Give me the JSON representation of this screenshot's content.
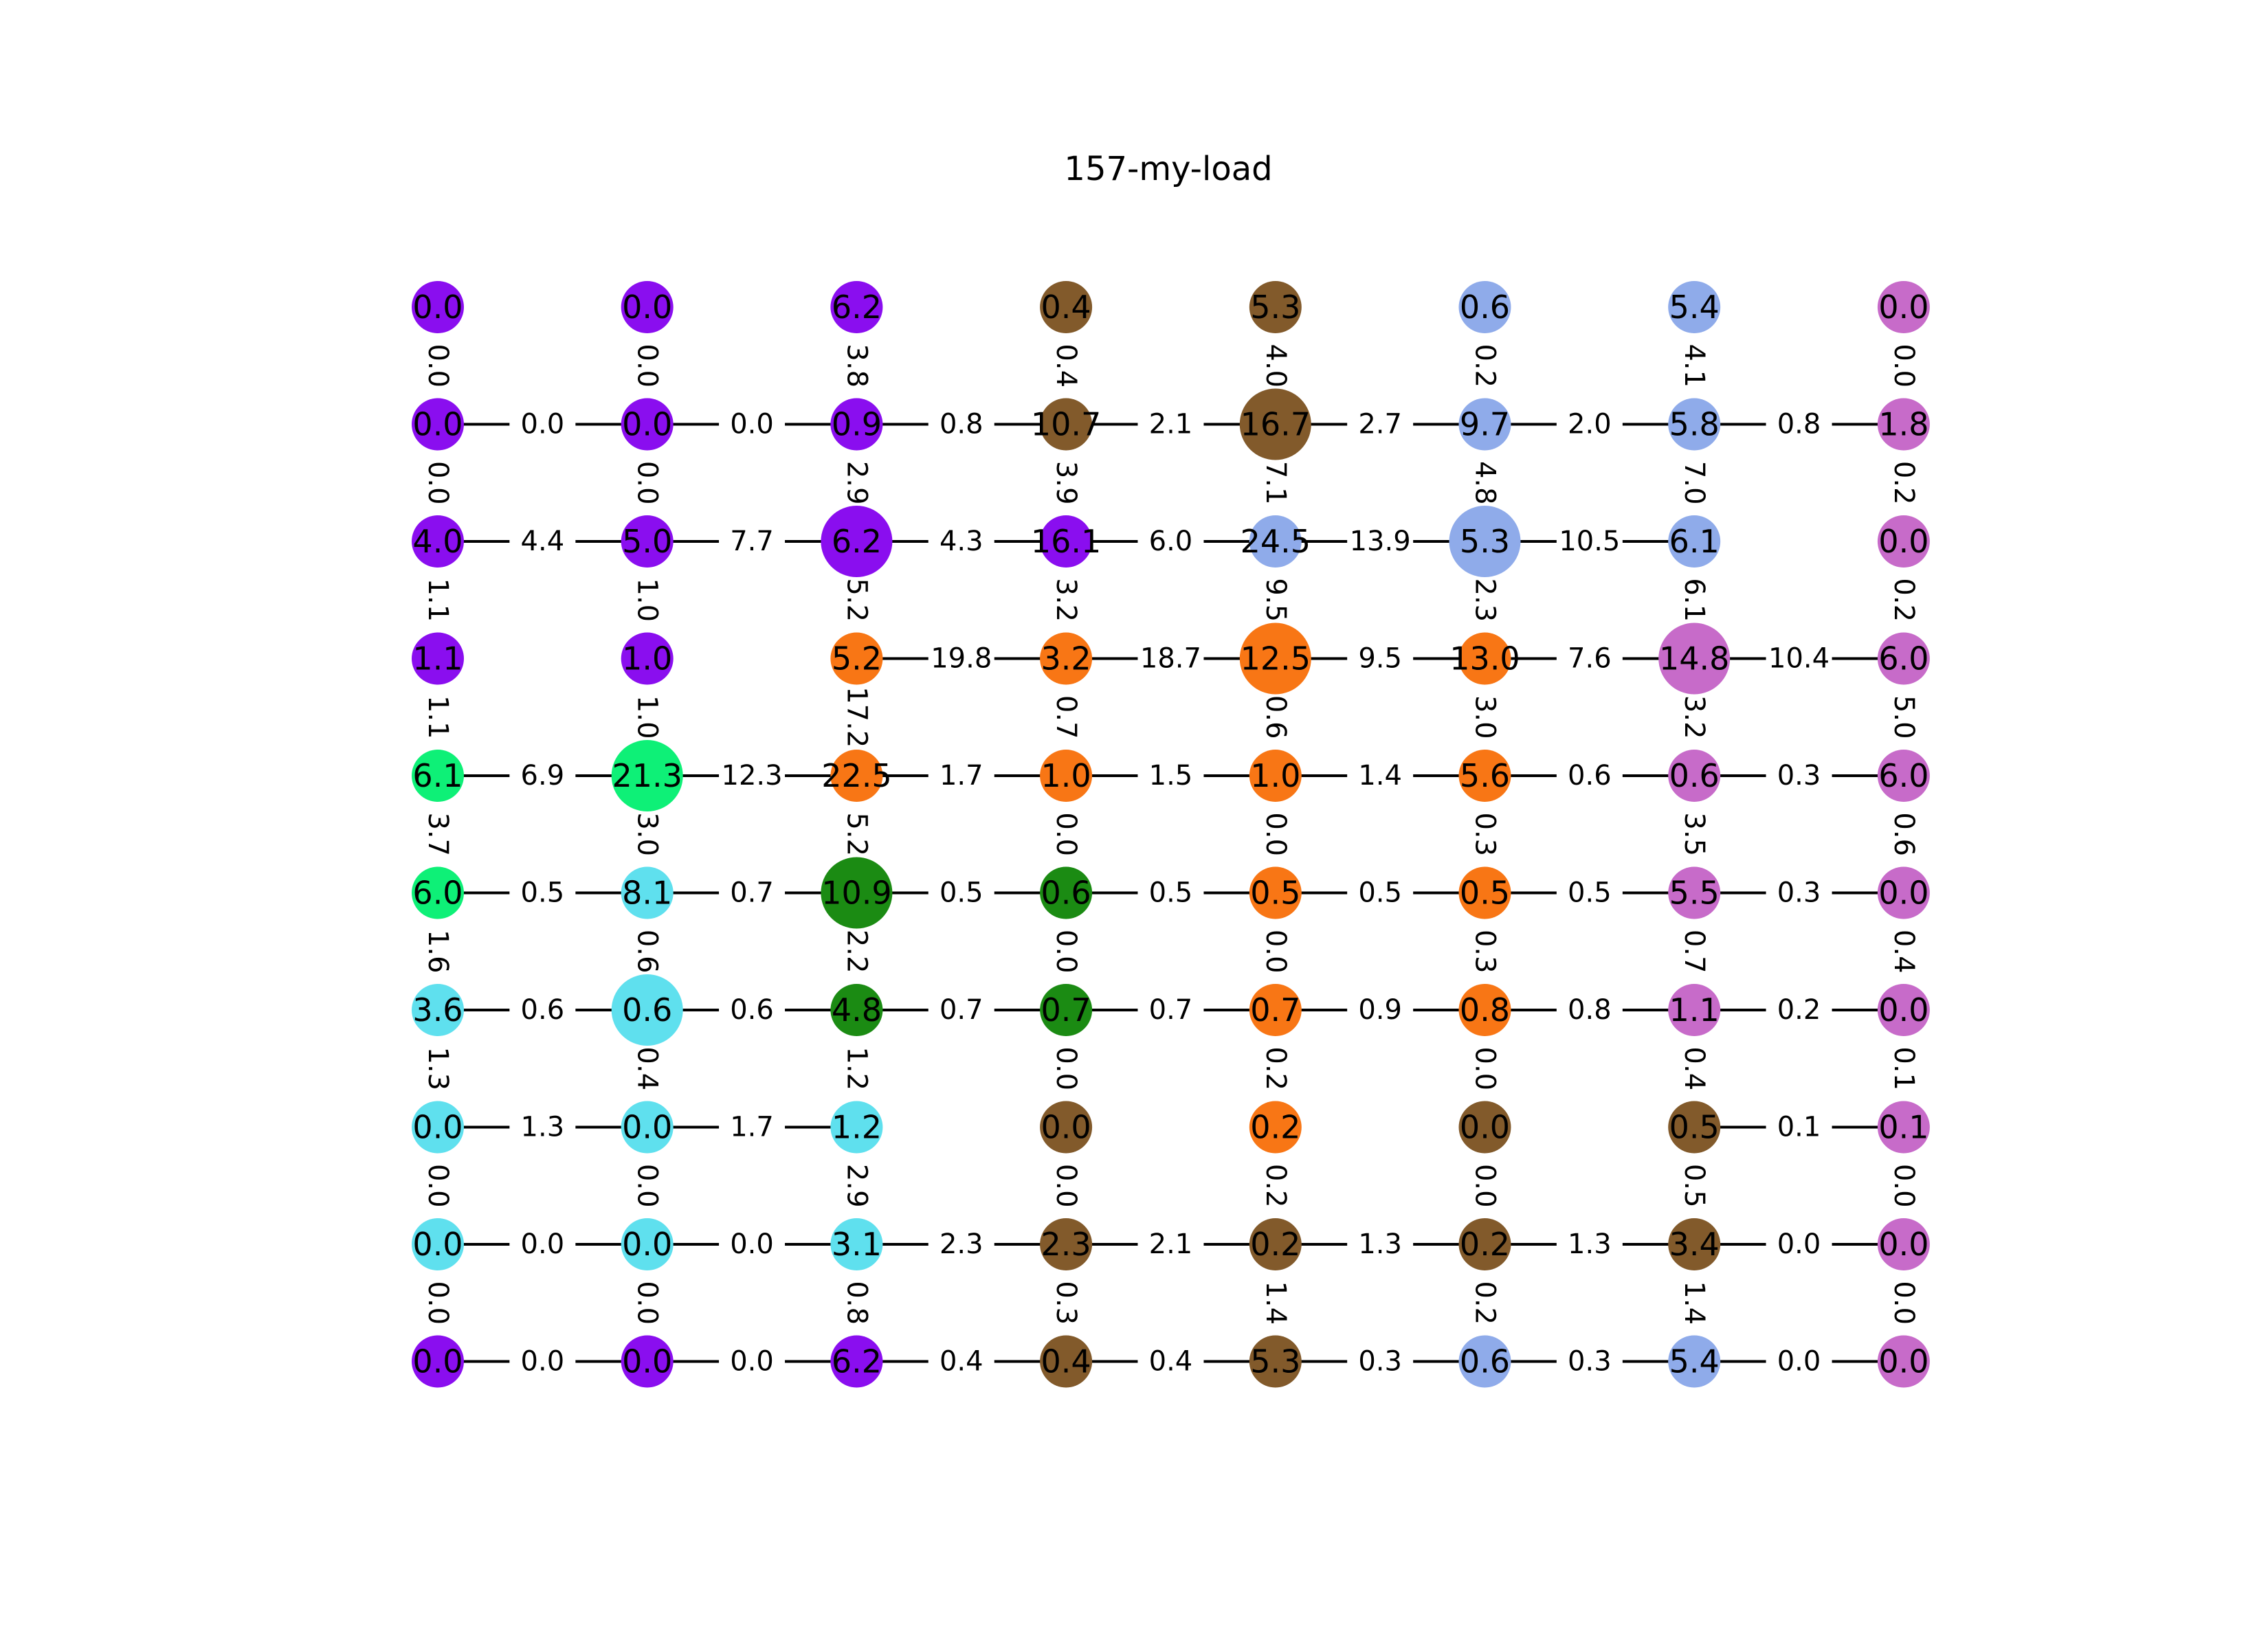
{
  "title": "157-my-load",
  "colors": {
    "purple": "#8a0eef",
    "brown": "#825a2b",
    "periwinkle": "#8fabea",
    "orchid": "#c76bc9",
    "green": "#0ef077",
    "cyan": "#5fe0ee",
    "orange": "#f87615",
    "forest": "#1b8b13"
  },
  "rows": [
    [
      {
        "v": "0.0",
        "c": "purple",
        "s": 0
      },
      {
        "v": "0.0",
        "c": "purple",
        "s": 0
      },
      {
        "v": "6.2",
        "c": "purple",
        "s": 0
      },
      {
        "v": "0.4",
        "c": "brown",
        "s": 0
      },
      {
        "v": "5.3",
        "c": "brown",
        "s": 0
      },
      {
        "v": "0.6",
        "c": "periwinkle",
        "s": 0
      },
      {
        "v": "5.4",
        "c": "periwinkle",
        "s": 0
      },
      {
        "v": "0.0",
        "c": "orchid",
        "s": 0
      }
    ],
    [
      {
        "v": "0.0",
        "c": "purple",
        "s": 0
      },
      {
        "v": "0.0",
        "c": "purple",
        "s": 0
      },
      {
        "v": "0.9",
        "c": "purple",
        "s": 0
      },
      {
        "v": "10.7",
        "c": "brown",
        "s": 0
      },
      {
        "v": "16.7",
        "c": "brown",
        "s": 2
      },
      {
        "v": "9.7",
        "c": "periwinkle",
        "s": 0
      },
      {
        "v": "5.8",
        "c": "periwinkle",
        "s": 0
      },
      {
        "v": "1.8",
        "c": "orchid",
        "s": 0
      }
    ],
    [
      {
        "v": "4.0",
        "c": "purple",
        "s": 0
      },
      {
        "v": "5.0",
        "c": "purple",
        "s": 0
      },
      {
        "v": "6.2",
        "c": "purple",
        "s": 2
      },
      {
        "v": "16.1",
        "c": "purple",
        "s": 0
      },
      {
        "v": "24.5",
        "c": "periwinkle",
        "s": 0
      },
      {
        "v": "5.3",
        "c": "periwinkle",
        "s": 2
      },
      {
        "v": "6.1",
        "c": "periwinkle",
        "s": 0
      },
      {
        "v": "0.0",
        "c": "orchid",
        "s": 0
      }
    ],
    [
      {
        "v": "1.1",
        "c": "purple",
        "s": 0
      },
      {
        "v": "1.0",
        "c": "purple",
        "s": 0
      },
      {
        "v": "5.2",
        "c": "orange",
        "s": 0
      },
      {
        "v": "3.2",
        "c": "orange",
        "s": 0
      },
      {
        "v": "12.5",
        "c": "orange",
        "s": 2
      },
      {
        "v": "13.0",
        "c": "orange",
        "s": 0
      },
      {
        "v": "14.8",
        "c": "orchid",
        "s": 2
      },
      {
        "v": "6.0",
        "c": "orchid",
        "s": 0
      }
    ],
    [
      {
        "v": "6.1",
        "c": "green",
        "s": 0
      },
      {
        "v": "21.3",
        "c": "green",
        "s": 2
      },
      {
        "v": "22.5",
        "c": "orange",
        "s": 0
      },
      {
        "v": "1.0",
        "c": "orange",
        "s": 0
      },
      {
        "v": "1.0",
        "c": "orange",
        "s": 0
      },
      {
        "v": "5.6",
        "c": "orange",
        "s": 0
      },
      {
        "v": "0.6",
        "c": "orchid",
        "s": 0
      },
      {
        "v": "6.0",
        "c": "orchid",
        "s": 0
      }
    ],
    [
      {
        "v": "6.0",
        "c": "green",
        "s": 0
      },
      {
        "v": "8.1",
        "c": "cyan",
        "s": 0
      },
      {
        "v": "10.9",
        "c": "forest",
        "s": 2
      },
      {
        "v": "0.6",
        "c": "forest",
        "s": 0
      },
      {
        "v": "0.5",
        "c": "orange",
        "s": 0
      },
      {
        "v": "0.5",
        "c": "orange",
        "s": 0
      },
      {
        "v": "5.5",
        "c": "orchid",
        "s": 0
      },
      {
        "v": "0.0",
        "c": "orchid",
        "s": 0
      }
    ],
    [
      {
        "v": "3.6",
        "c": "cyan",
        "s": 0
      },
      {
        "v": "0.6",
        "c": "cyan",
        "s": 2
      },
      {
        "v": "4.8",
        "c": "forest",
        "s": 0
      },
      {
        "v": "0.7",
        "c": "forest",
        "s": 0
      },
      {
        "v": "0.7",
        "c": "orange",
        "s": 0
      },
      {
        "v": "0.8",
        "c": "orange",
        "s": 0
      },
      {
        "v": "1.1",
        "c": "orchid",
        "s": 0
      },
      {
        "v": "0.0",
        "c": "orchid",
        "s": 0
      }
    ],
    [
      {
        "v": "0.0",
        "c": "cyan",
        "s": 0
      },
      {
        "v": "0.0",
        "c": "cyan",
        "s": 0
      },
      {
        "v": "1.2",
        "c": "cyan",
        "s": 0
      },
      {
        "v": "0.0",
        "c": "brown",
        "s": 0
      },
      {
        "v": "0.2",
        "c": "orange",
        "s": 0
      },
      {
        "v": "0.0",
        "c": "brown",
        "s": 0
      },
      {
        "v": "0.5",
        "c": "brown",
        "s": 0
      },
      {
        "v": "0.1",
        "c": "orchid",
        "s": 0
      }
    ],
    [
      {
        "v": "0.0",
        "c": "cyan",
        "s": 0
      },
      {
        "v": "0.0",
        "c": "cyan",
        "s": 0
      },
      {
        "v": "3.1",
        "c": "cyan",
        "s": 0
      },
      {
        "v": "2.3",
        "c": "brown",
        "s": 0
      },
      {
        "v": "0.2",
        "c": "brown",
        "s": 0
      },
      {
        "v": "0.2",
        "c": "brown",
        "s": 0
      },
      {
        "v": "3.4",
        "c": "brown",
        "s": 0
      },
      {
        "v": "0.0",
        "c": "orchid",
        "s": 0
      }
    ],
    [
      {
        "v": "0.0",
        "c": "purple",
        "s": 0
      },
      {
        "v": "0.0",
        "c": "purple",
        "s": 0
      },
      {
        "v": "6.2",
        "c": "purple",
        "s": 0
      },
      {
        "v": "0.4",
        "c": "brown",
        "s": 0
      },
      {
        "v": "5.3",
        "c": "brown",
        "s": 0
      },
      {
        "v": "0.6",
        "c": "periwinkle",
        "s": 0
      },
      {
        "v": "5.4",
        "c": "periwinkle",
        "s": 0
      },
      {
        "v": "0.0",
        "c": "orchid",
        "s": 0
      }
    ]
  ],
  "h_edges": [
    [
      null,
      null,
      null,
      null,
      null,
      null,
      null
    ],
    [
      "0.0",
      "0.0",
      "0.8",
      "2.1",
      "2.7",
      "2.0",
      "0.8"
    ],
    [
      "4.4",
      "7.7",
      "4.3",
      "6.0",
      "13.9",
      "10.5",
      null
    ],
    [
      null,
      null,
      "19.8",
      "18.7",
      "9.5",
      "7.6",
      "10.4"
    ],
    [
      "6.9",
      "12.3",
      "1.7",
      "1.5",
      "1.4",
      "0.6",
      "0.3"
    ],
    [
      "0.5",
      "0.7",
      "0.5",
      "0.5",
      "0.5",
      "0.5",
      "0.3"
    ],
    [
      "0.6",
      "0.6",
      "0.7",
      "0.7",
      "0.9",
      "0.8",
      "0.2"
    ],
    [
      "1.3",
      "1.7",
      null,
      null,
      null,
      null,
      "0.1"
    ],
    [
      "0.0",
      "0.0",
      "2.3",
      "2.1",
      "1.3",
      "1.3",
      "0.0"
    ],
    [
      "0.0",
      "0.0",
      "0.4",
      "0.4",
      "0.3",
      "0.3",
      "0.0"
    ]
  ],
  "v_edges": [
    [
      "0.0",
      "0.0",
      "3.8",
      "0.4",
      "4.0",
      "0.2",
      "4.1",
      "0.0"
    ],
    [
      "0.0",
      "0.0",
      "2.9",
      "3.9",
      "7.1",
      "4.8",
      "7.0",
      "0.2"
    ],
    [
      "1.1",
      "1.0",
      "5.2",
      "3.2",
      "9.5",
      "2.3",
      "6.1",
      "0.2"
    ],
    [
      "1.1",
      "1.0",
      "17.2",
      "0.7",
      "0.6",
      "3.0",
      "3.2",
      "5.0"
    ],
    [
      "3.7",
      "3.0",
      "5.2",
      "0.0",
      "0.0",
      "0.3",
      "3.5",
      "0.6"
    ],
    [
      "1.6",
      "0.6",
      "2.2",
      "0.0",
      "0.0",
      "0.3",
      "0.7",
      "0.4"
    ],
    [
      "1.3",
      "0.4",
      "1.2",
      "0.0",
      "0.2",
      "0.0",
      "0.4",
      "0.1"
    ],
    [
      "0.0",
      "0.0",
      "2.9",
      "0.0",
      "0.2",
      "0.0",
      "0.5",
      "0.0"
    ],
    [
      "0.0",
      "0.0",
      "0.8",
      "0.3",
      "1.4",
      "0.2",
      "1.4",
      "0.0"
    ]
  ]
}
